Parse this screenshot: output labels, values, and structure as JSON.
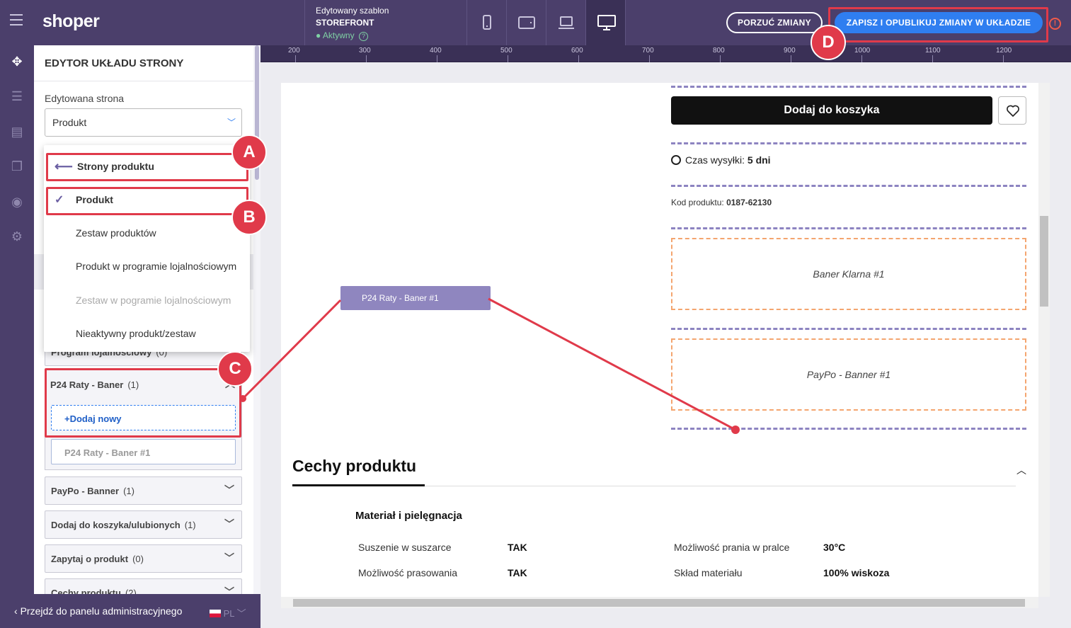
{
  "topbar": {
    "logo": "shoper",
    "template_label": "Edytowany szablon",
    "template_name": "STOREFRONT",
    "template_status": "Aktywny",
    "discard_label": "PORZUĆ ZMIANY",
    "publish_label": "ZAPISZ I OPUBLIKUJ ZMIANY W UKŁADZIE",
    "warning_glyph": "!"
  },
  "sidebar": {
    "title": "EDYTOR UKŁADU STRONY",
    "page_label": "Edytowana strona",
    "page_value": "Produkt",
    "dropdown": {
      "back_label": "Strony produktu",
      "options": [
        {
          "label": "Produkt",
          "selected": true,
          "disabled": false
        },
        {
          "label": "Zestaw produktów",
          "selected": false,
          "disabled": false
        },
        {
          "label": "Produkt w programie lojalnościowym",
          "selected": false,
          "disabled": false
        },
        {
          "label": "Zestaw w pogramie lojalnościowym",
          "selected": false,
          "disabled": true
        },
        {
          "label": "Nieaktywny produkt/zestaw",
          "selected": false,
          "disabled": false
        }
      ]
    },
    "hidden_group": {
      "label": "Program lojalnościowy",
      "count": "(0)"
    },
    "groups": [
      {
        "label": "P24 Raty - Baner",
        "count": "(1)",
        "expanded": true
      },
      {
        "label": "PayPo - Banner",
        "count": "(1)"
      },
      {
        "label": "Dodaj do koszyka/ulubionych",
        "count": "(1)"
      },
      {
        "label": "Zapytaj o produkt",
        "count": "(0)"
      },
      {
        "label": "Cechy produktu",
        "count": "(2)"
      }
    ],
    "add_new_label": "+Dodaj nowy",
    "p24_item": "P24 Raty - Baner #1"
  },
  "bottom_bar": {
    "admin_link": "Przejdź do panelu administracyjnego",
    "language": "PL"
  },
  "ruler": {
    "ticks": [
      "200",
      "300",
      "400",
      "500",
      "600",
      "700",
      "800",
      "900",
      "1000",
      "1100",
      "1200"
    ]
  },
  "preview": {
    "add_to_cart": "Dodaj do koszyka",
    "shipping_label": "Czas wysyłki:",
    "shipping_value": "5 dni",
    "code_label": "Kod produktu:",
    "code_value": "0187-62130",
    "klarna_banner": "Baner Klarna #1",
    "paypo_banner": "PayPo - Banner #1",
    "floating_block": "P24 Raty - Baner #1",
    "features_title": "Cechy produktu",
    "features_subtitle": "Materiał i pielęgnacja",
    "specs": [
      {
        "key": "Suszenie w suszarce",
        "value": "TAK"
      },
      {
        "key": "Możliwość prania w pralce",
        "value": "30°C"
      },
      {
        "key": "Możliwość prasowania",
        "value": "TAK"
      },
      {
        "key": "Skład materiału",
        "value": "100% wiskoza"
      }
    ]
  },
  "annotations": [
    "A",
    "B",
    "C",
    "D"
  ],
  "colors": {
    "topbar": "#4b3f6b",
    "accent": "#2f7ef0",
    "annotation": "#e03a4a",
    "drop_zone": "#8d84c1",
    "banner_border": "#f4a56f"
  }
}
